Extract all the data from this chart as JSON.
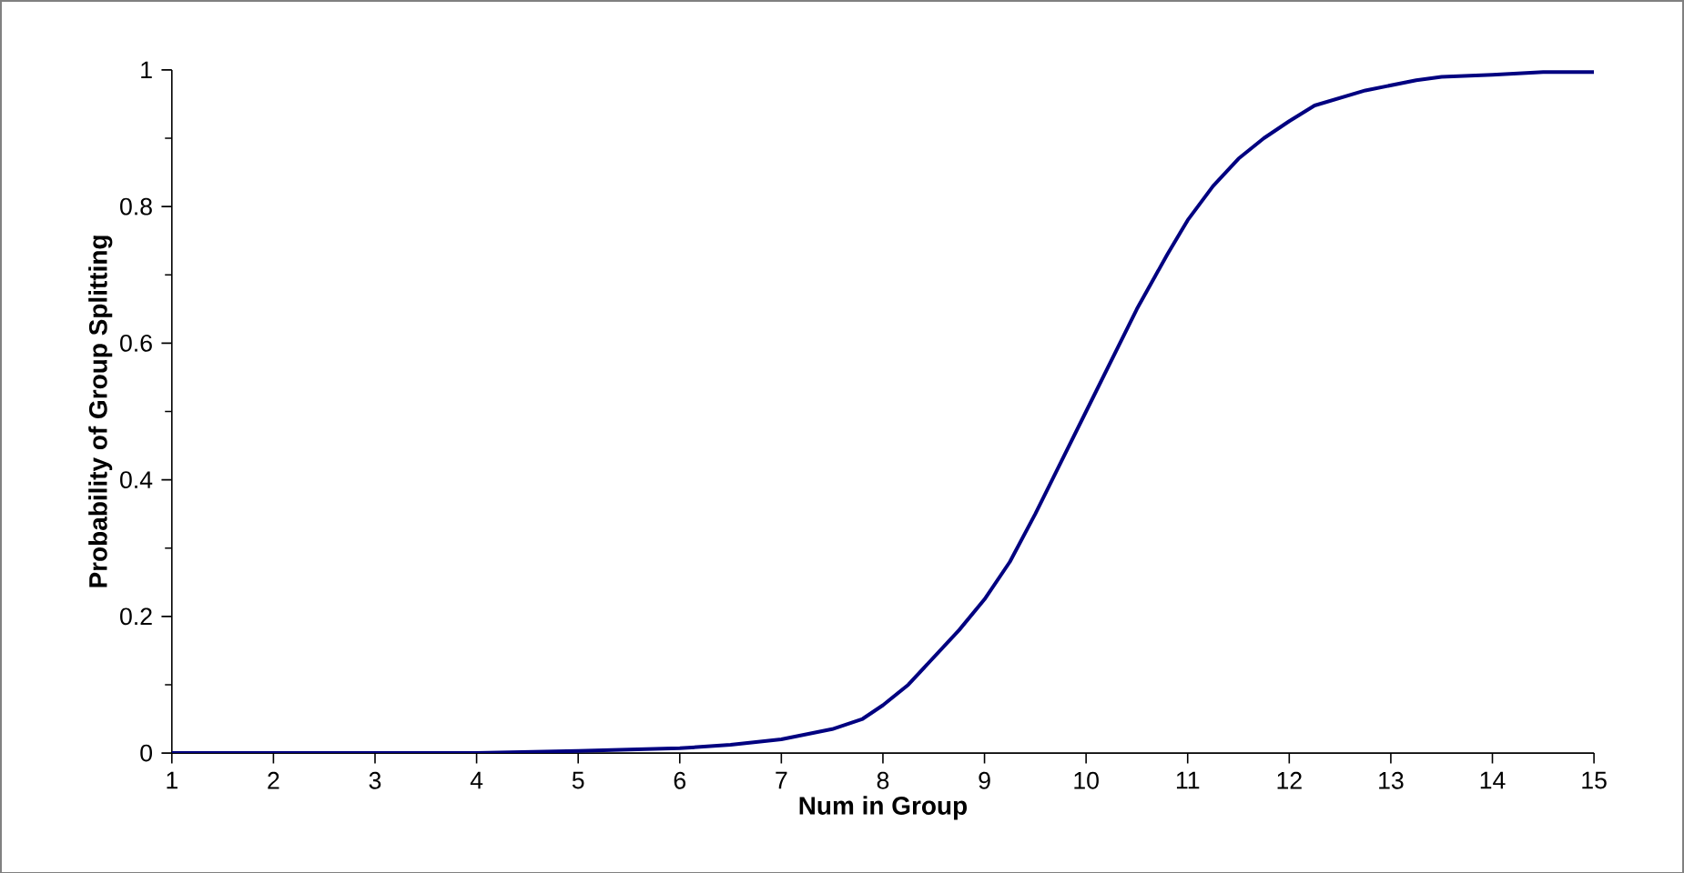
{
  "chart_data": {
    "type": "line",
    "xlabel": "Num in Group",
    "ylabel": "Probability of Group Splitting",
    "x": [
      1,
      2,
      3,
      4,
      5,
      6,
      6.5,
      7,
      7.5,
      7.8,
      8,
      8.25,
      8.5,
      8.75,
      9,
      9.25,
      9.5,
      10,
      10.5,
      10.8,
      11,
      11.25,
      11.5,
      11.75,
      12,
      12.25,
      12.75,
      13.25,
      13.5,
      14,
      14.5,
      15
    ],
    "series": [
      {
        "color": "#000080",
        "values": [
          0,
          0,
          0,
          0,
          0.003,
          0.007,
          0.012,
          0.02,
          0.035,
          0.05,
          0.07,
          0.1,
          0.14,
          0.18,
          0.225,
          0.28,
          0.35,
          0.5,
          0.65,
          0.73,
          0.78,
          0.83,
          0.87,
          0.9,
          0.925,
          0.948,
          0.97,
          0.985,
          0.99,
          0.993,
          0.997,
          0.997
        ]
      }
    ],
    "xlim": [
      1,
      15
    ],
    "ylim": [
      0,
      1
    ],
    "xticks": [
      1,
      2,
      3,
      4,
      5,
      6,
      7,
      8,
      9,
      10,
      11,
      12,
      13,
      14,
      15
    ],
    "yticks": [
      0,
      0.2,
      0.4,
      0.6,
      0.8,
      1
    ],
    "marker": "none",
    "line_style": "solid"
  }
}
